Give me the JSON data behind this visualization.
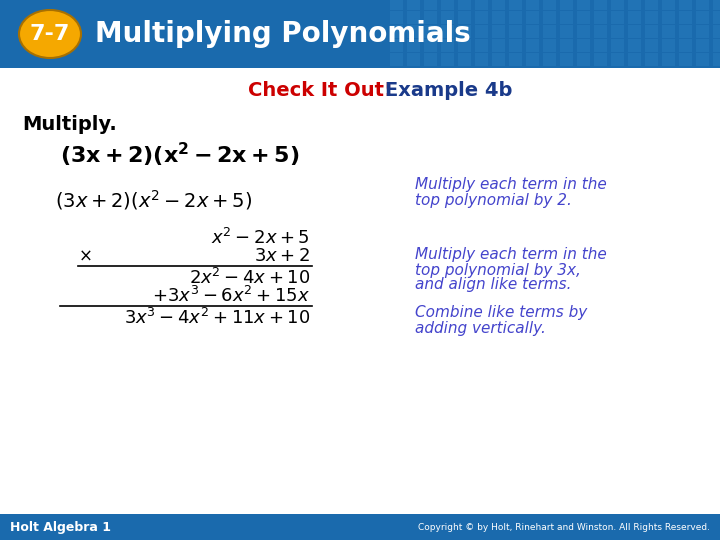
{
  "header_bg_color": "#1a6aad",
  "header_text": "Multiplying Polynomials",
  "header_text_color": "#ffffff",
  "badge_bg_color": "#f5a800",
  "badge_text": "7-7",
  "badge_text_color": "#ffffff",
  "body_bg_color": "#ffffff",
  "subtitle_red": "Check It Out!",
  "subtitle_blue": " Example 4b",
  "subtitle_red_color": "#cc0000",
  "subtitle_blue_color": "#1a3a8a",
  "multiply_label": "Multiply.",
  "multiply_label_color": "#000000",
  "note1_line1": "Multiply each term in the",
  "note1_line2": "top polynomial by 2.",
  "note2_line1": "Multiply each term in the",
  "note2_line2": "top polynomial by 3x,",
  "note2_line3": "and align like terms.",
  "note3_line1": "Combine like terms by",
  "note3_line2": "adding vertically.",
  "note_color": "#4444cc",
  "footer_bg_color": "#1a6aad",
  "footer_left": "Holt Algebra 1",
  "footer_right": "Copyright © by Holt, Rinehart and Winston. All Rights Reserved.",
  "footer_text_color": "#ffffff",
  "tile_color": "#2a7fc0",
  "tile_alpha": 0.45
}
